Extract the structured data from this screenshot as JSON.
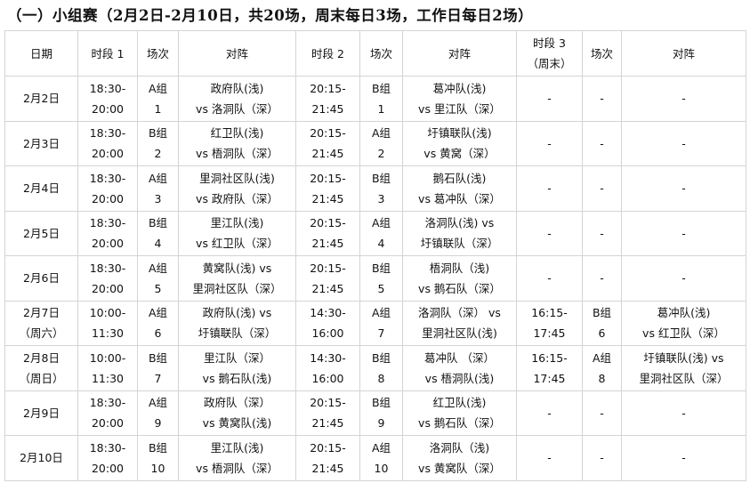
{
  "title": "（一）小组赛（2月2日-2月10日，共20场，周末每日3场，工作日每日2场）",
  "headers": [
    [
      "日期"
    ],
    [
      "时段 1"
    ],
    [
      "场次"
    ],
    [
      "对阵"
    ],
    [
      "时段 2"
    ],
    [
      "场次"
    ],
    [
      "对阵"
    ],
    [
      "时段 3",
      "（周末）"
    ],
    [
      "场次"
    ],
    [
      "对阵"
    ]
  ],
  "rows": [
    [
      [
        "2月2日"
      ],
      [
        "18:30-",
        "20:00"
      ],
      [
        "A组",
        "1"
      ],
      [
        "政府队(浅)",
        "vs 洛洞队（深）"
      ],
      [
        "20:15-",
        "21:45"
      ],
      [
        "B组",
        "1"
      ],
      [
        "葛冲队(浅)",
        "vs 里江队（深）"
      ],
      [
        "-"
      ],
      [
        "-"
      ],
      [
        "-"
      ]
    ],
    [
      [
        "2月3日"
      ],
      [
        "18:30-",
        "20:00"
      ],
      [
        "B组",
        "2"
      ],
      [
        "红卫队(浅)",
        "vs 梧洞队（深）"
      ],
      [
        "20:15-",
        "21:45"
      ],
      [
        "A组",
        "2"
      ],
      [
        "圩镇联队(浅)",
        "vs 黄窝（深）"
      ],
      [
        "-"
      ],
      [
        "-"
      ],
      [
        "-"
      ]
    ],
    [
      [
        "2月4日"
      ],
      [
        "18:30-",
        "20:00"
      ],
      [
        "A组",
        "3"
      ],
      [
        "里洞社区队(浅)",
        "vs 政府队（深）"
      ],
      [
        "20:15-",
        "21:45"
      ],
      [
        "B组",
        "3"
      ],
      [
        "鹅石队(浅)",
        "vs 葛冲队（深）"
      ],
      [
        "-"
      ],
      [
        "-"
      ],
      [
        "-"
      ]
    ],
    [
      [
        "2月5日"
      ],
      [
        "18:30-",
        "20:00"
      ],
      [
        "B组",
        "4"
      ],
      [
        "里江队(浅)",
        "vs 红卫队（深）"
      ],
      [
        "20:15-",
        "21:45"
      ],
      [
        "A组",
        "4"
      ],
      [
        "洛洞队(浅) vs",
        "圩镇联队（深）"
      ],
      [
        "-"
      ],
      [
        "-"
      ],
      [
        "-"
      ]
    ],
    [
      [
        "2月6日"
      ],
      [
        "18:30-",
        "20:00"
      ],
      [
        "A组",
        "5"
      ],
      [
        "黄窝队(浅) vs",
        "里洞社区队（深）"
      ],
      [
        "20:15-",
        "21:45"
      ],
      [
        "B组",
        "5"
      ],
      [
        "梧洞队（浅)",
        "vs 鹅石队（深）"
      ],
      [
        "-"
      ],
      [
        "-"
      ],
      [
        "-"
      ]
    ],
    [
      [
        "2月7日",
        "（周六）"
      ],
      [
        "10:00-",
        "11:30"
      ],
      [
        "A组",
        "6"
      ],
      [
        "政府队(浅) vs",
        "圩镇联队（深）"
      ],
      [
        "14:30-",
        "16:00"
      ],
      [
        "A组",
        "7"
      ],
      [
        "洛洞队（深） vs",
        "里洞社区队(浅)"
      ],
      [
        "16:15-",
        "17:45"
      ],
      [
        "B组",
        "6"
      ],
      [
        "葛冲队(浅)",
        "vs 红卫队（深）"
      ]
    ],
    [
      [
        "2月8日",
        "（周日）"
      ],
      [
        "10:00-",
        "11:30"
      ],
      [
        "B组",
        "7"
      ],
      [
        "里江队（深）",
        "vs 鹅石队(浅)"
      ],
      [
        "14:30-",
        "16:00"
      ],
      [
        "B组",
        "8"
      ],
      [
        "葛冲队 （深）",
        "vs 梧洞队(浅)"
      ],
      [
        "16:15-",
        "17:45"
      ],
      [
        "A组",
        "8"
      ],
      [
        "圩镇联队(浅) vs",
        "里洞社区队（深）"
      ]
    ],
    [
      [
        "2月9日"
      ],
      [
        "18:30-",
        "20:00"
      ],
      [
        "A组",
        "9"
      ],
      [
        "政府队（深）",
        "vs 黄窝队(浅)"
      ],
      [
        "20:15-",
        "21:45"
      ],
      [
        "B组",
        "9"
      ],
      [
        "红卫队(浅)",
        "vs 鹅石队（深）"
      ],
      [
        "-"
      ],
      [
        "-"
      ],
      [
        "-"
      ]
    ],
    [
      [
        "2月10日"
      ],
      [
        "18:30-",
        "20:00"
      ],
      [
        "B组",
        "10"
      ],
      [
        "里江队(浅)",
        "vs 梧洞队（深）"
      ],
      [
        "20:15-",
        "21:45"
      ],
      [
        "A组",
        "10"
      ],
      [
        "洛洞队（浅)",
        "vs 黄窝队（深）"
      ],
      [
        "-"
      ],
      [
        "-"
      ],
      [
        "-"
      ]
    ]
  ]
}
